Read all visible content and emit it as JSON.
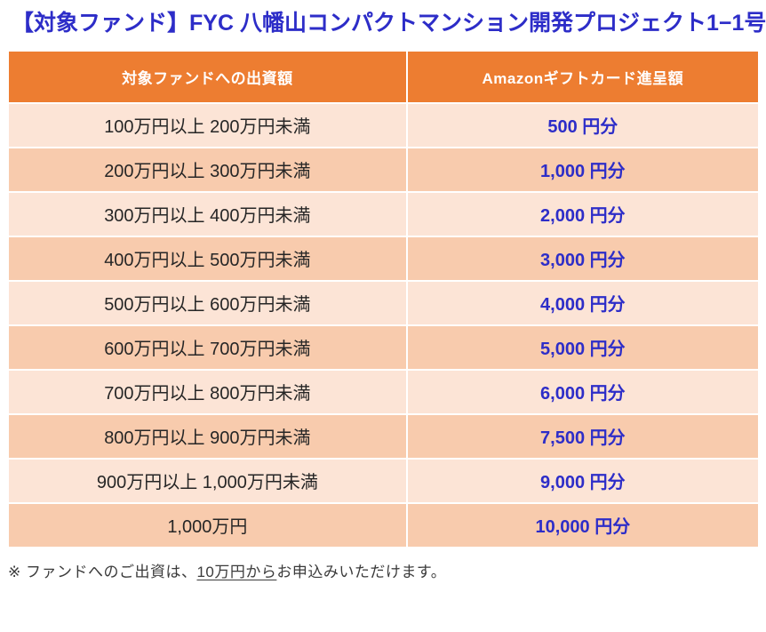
{
  "page_title": "【対象ファンド】FYC 八幡山コンパクトマンション開発プロジェクト1−1号",
  "table": {
    "headers": [
      "対象ファンドへの出資額",
      "Amazonギフトカード進呈額"
    ],
    "rows": [
      {
        "investment_range": "100万円以上 200万円未満",
        "gift_amount": "500 円分"
      },
      {
        "investment_range": "200万円以上 300万円未満",
        "gift_amount": "1,000 円分"
      },
      {
        "investment_range": "300万円以上 400万円未満",
        "gift_amount": "2,000 円分"
      },
      {
        "investment_range": "400万円以上 500万円未満",
        "gift_amount": "3,000 円分"
      },
      {
        "investment_range": "500万円以上 600万円未満",
        "gift_amount": "4,000 円分"
      },
      {
        "investment_range": "600万円以上 700万円未満",
        "gift_amount": "5,000 円分"
      },
      {
        "investment_range": "700万円以上 800万円未満",
        "gift_amount": "6,000 円分"
      },
      {
        "investment_range": "800万円以上 900万円未満",
        "gift_amount": "7,500 円分"
      },
      {
        "investment_range": "900万円以上 1,000万円未満",
        "gift_amount": "9,000 円分"
      },
      {
        "investment_range": "1,000万円",
        "gift_amount": "10,000 円分"
      }
    ]
  },
  "footnote": {
    "prefix": "※ ファンドへのご出資は、",
    "underlined": "10万円から",
    "suffix": "お申込みいただけます。"
  },
  "colors": {
    "title_blue": "#2d2dc8",
    "header_orange": "#ed7d31",
    "row_light": "#fce4d6",
    "row_dark": "#f8cbad",
    "value_blue": "#2d2dc8"
  }
}
